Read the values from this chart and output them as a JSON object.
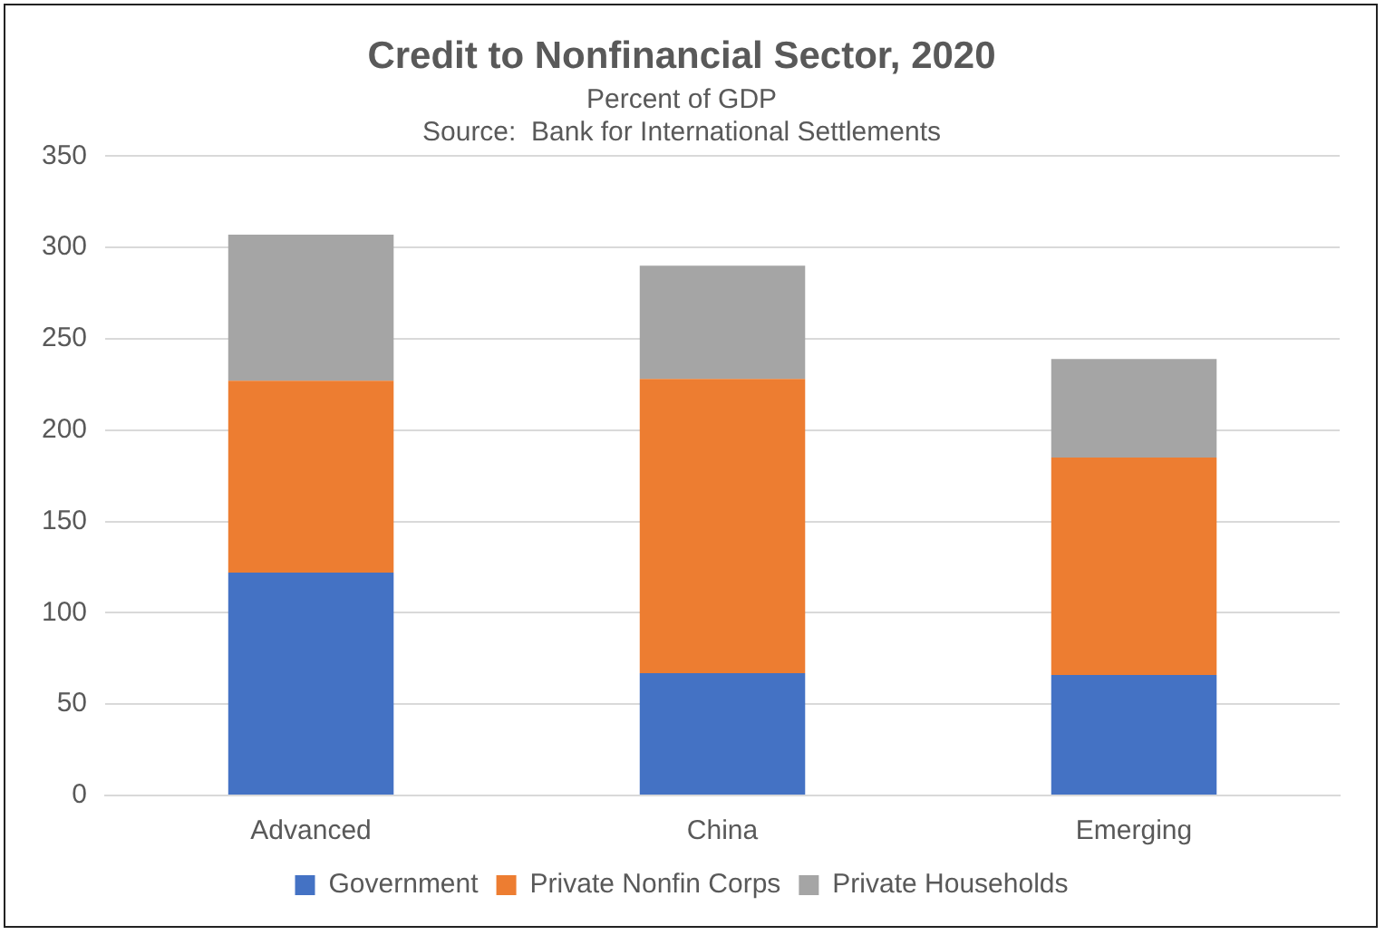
{
  "chart_data": {
    "type": "bar",
    "title": "Credit to Nonfinancial Sector, 2020",
    "subtitle": "Percent of GDP",
    "annotations": [
      "Source:  Bank for International Settlements"
    ],
    "categories": [
      "Advanced",
      "China",
      "Emerging"
    ],
    "series": [
      {
        "name": "Government",
        "color": "#4472c4",
        "values": [
          122,
          67,
          66
        ]
      },
      {
        "name": "Private Nonfin Corps",
        "color": "#ed7d31",
        "values": [
          105,
          161,
          119
        ]
      },
      {
        "name": "Private Households",
        "color": "#a5a5a5",
        "values": [
          80,
          62,
          54
        ]
      }
    ],
    "stacked": true,
    "ylim": [
      0,
      350
    ],
    "yticks": [
      0,
      50,
      100,
      150,
      200,
      250,
      300,
      350
    ],
    "grid": "y",
    "legend": "bottom"
  }
}
